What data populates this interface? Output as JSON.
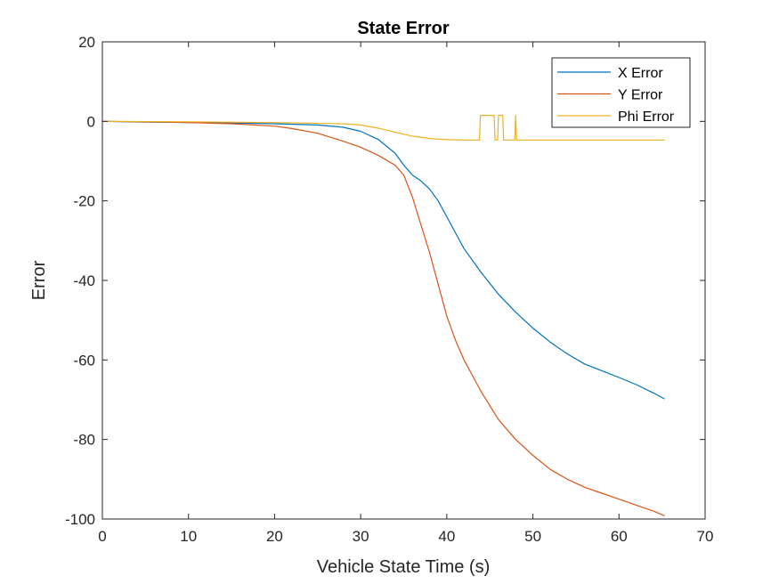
{
  "chart_data": {
    "type": "line",
    "title": "State Error",
    "xlabel": "Vehicle State Time (s)",
    "ylabel": "Error",
    "xlim": [
      0,
      70
    ],
    "ylim": [
      -100,
      20
    ],
    "xticks": [
      "0",
      "10",
      "20",
      "30",
      "40",
      "50",
      "60",
      "70"
    ],
    "yticks": [
      "20",
      "0",
      "-20",
      "-40",
      "-60",
      "-80",
      "-100"
    ],
    "grid": false,
    "legend_position": "top-right",
    "series": [
      {
        "name": "X Error",
        "color": "#0072BD",
        "x": [
          0,
          5,
          10,
          15,
          20,
          25,
          28,
          30,
          32,
          34,
          35,
          36,
          37,
          38,
          39,
          40,
          41,
          42,
          44,
          46,
          48,
          50,
          52,
          54,
          56,
          58,
          60,
          62,
          64,
          65.3
        ],
        "y": [
          0,
          -0.2,
          -0.3,
          -0.4,
          -0.6,
          -0.9,
          -1.5,
          -2.5,
          -4.5,
          -8,
          -11,
          -13.5,
          -15,
          -17,
          -20,
          -24,
          -28,
          -32,
          -38,
          -43.5,
          -48,
          -52,
          -55.5,
          -58.5,
          -61,
          -62.7,
          -64.4,
          -66.2,
          -68.3,
          -69.8
        ]
      },
      {
        "name": "Y Error",
        "color": "#D95319",
        "x": [
          0,
          5,
          10,
          15,
          20,
          22,
          25,
          28,
          30,
          32,
          34,
          35,
          36,
          37,
          38,
          39,
          40,
          41,
          42,
          44,
          46,
          48,
          50,
          52,
          54,
          56,
          58,
          60,
          62,
          64,
          65.3
        ],
        "y": [
          0,
          -0.1,
          -0.3,
          -0.6,
          -1.2,
          -1.8,
          -3,
          -5,
          -6.5,
          -8.5,
          -11,
          -13.5,
          -19,
          -26,
          -33,
          -41,
          -49,
          -55,
          -60,
          -68,
          -75,
          -80,
          -84,
          -87.5,
          -90,
          -92,
          -93.5,
          -95,
          -96.5,
          -98,
          -99.2
        ]
      },
      {
        "name": "Phi Error",
        "color": "#EDB120",
        "x": [
          0,
          10,
          20,
          28,
          30,
          32,
          34,
          36,
          38,
          40,
          42,
          43.8,
          43.9,
          45.5,
          45.6,
          45.9,
          46.0,
          46.5,
          46.6,
          47.9,
          48.0,
          48.1,
          55,
          65.3
        ],
        "y": [
          0,
          -0.1,
          -0.3,
          -0.6,
          -0.9,
          -1.7,
          -2.7,
          -3.7,
          -4.3,
          -4.6,
          -4.7,
          -4.7,
          1.5,
          1.5,
          -4.7,
          -4.7,
          1.5,
          1.5,
          -4.7,
          -4.7,
          1.5,
          -4.7,
          -4.7,
          -4.7
        ]
      }
    ]
  }
}
